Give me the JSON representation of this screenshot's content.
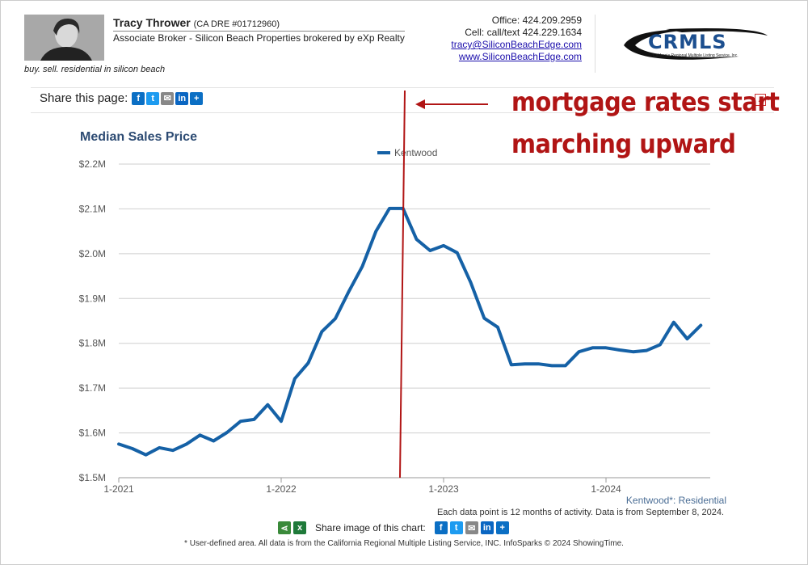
{
  "agent": {
    "name": "Tracy Thrower",
    "dre": "(CA DRE #01712960)",
    "title": "Associate Broker - Silicon Beach Properties brokered by eXp Realty",
    "tagline": "buy. sell. residential in silicon beach",
    "office": "Office: 424.209.2959",
    "cell": "Cell: call/text 424.229.1634",
    "email": "tracy@SiliconBeachEdge.com",
    "website": "www.SiliconBeachEdge.com"
  },
  "logo": {
    "text": "CRMLS",
    "subtext": "California Regional Multiple Listing Service, Inc."
  },
  "share": {
    "page_label": "Share this page:",
    "image_label": "Share image of this chart:",
    "buttons": [
      "f",
      "t",
      "✉",
      "in",
      "+"
    ]
  },
  "annotation": {
    "line1": "mortgage rates start",
    "line2": "marching upward",
    "color": "#b11515"
  },
  "chart_data": {
    "type": "line",
    "title": "Median Sales Price",
    "xlabel": "",
    "ylabel": "",
    "legend_position": "top-center",
    "grid": true,
    "ylim": [
      1500000,
      2200000
    ],
    "y_ticks": [
      "$1.5M",
      "$1.6M",
      "$1.7M",
      "$1.8M",
      "$1.9M",
      "$2.0M",
      "$2.1M",
      "$2.2M"
    ],
    "x_ticks": [
      "1-2021",
      "1-2022",
      "1-2023",
      "1-2024"
    ],
    "series": [
      {
        "name": "Kentwood",
        "color": "#1561a6",
        "x": [
          "2021-01",
          "2021-02",
          "2021-03",
          "2021-04",
          "2021-05",
          "2021-06",
          "2021-07",
          "2021-08",
          "2021-09",
          "2021-10",
          "2021-11",
          "2021-12",
          "2022-01",
          "2022-02",
          "2022-03",
          "2022-04",
          "2022-05",
          "2022-06",
          "2022-07",
          "2022-08",
          "2022-09",
          "2022-10",
          "2022-11",
          "2022-12",
          "2023-01",
          "2023-02",
          "2023-03",
          "2023-04",
          "2023-05",
          "2023-06",
          "2023-07",
          "2023-08",
          "2023-09",
          "2023-10",
          "2023-11",
          "2023-12",
          "2024-01",
          "2024-02",
          "2024-03",
          "2024-04",
          "2024-05",
          "2024-06",
          "2024-07",
          "2024-08"
        ],
        "values": [
          1575000,
          1565000,
          1551000,
          1567000,
          1561000,
          1575000,
          1595000,
          1582000,
          1601000,
          1626000,
          1630000,
          1663000,
          1626000,
          1721000,
          1756000,
          1826000,
          1855000,
          1916000,
          1972000,
          2050000,
          2101000,
          2101000,
          2032000,
          2007000,
          2018000,
          2002000,
          1936000,
          1856000,
          1836000,
          1752000,
          1754000,
          1754000,
          1750000,
          1750000,
          1781000,
          1790000,
          1790000,
          1785000,
          1781000,
          1784000,
          1797000,
          1847000,
          1810000,
          1840000
        ]
      }
    ],
    "marker_line": {
      "date": "2022-10",
      "color": "#b11515"
    },
    "area_label": "Kentwood*: Residential",
    "note": "Each data point is 12 months of activity. Data is from September 8, 2024."
  },
  "footer": "* User-defined area. All data is from the California Regional Multiple Listing Service, INC. InfoSparks © 2024 ShowingTime."
}
